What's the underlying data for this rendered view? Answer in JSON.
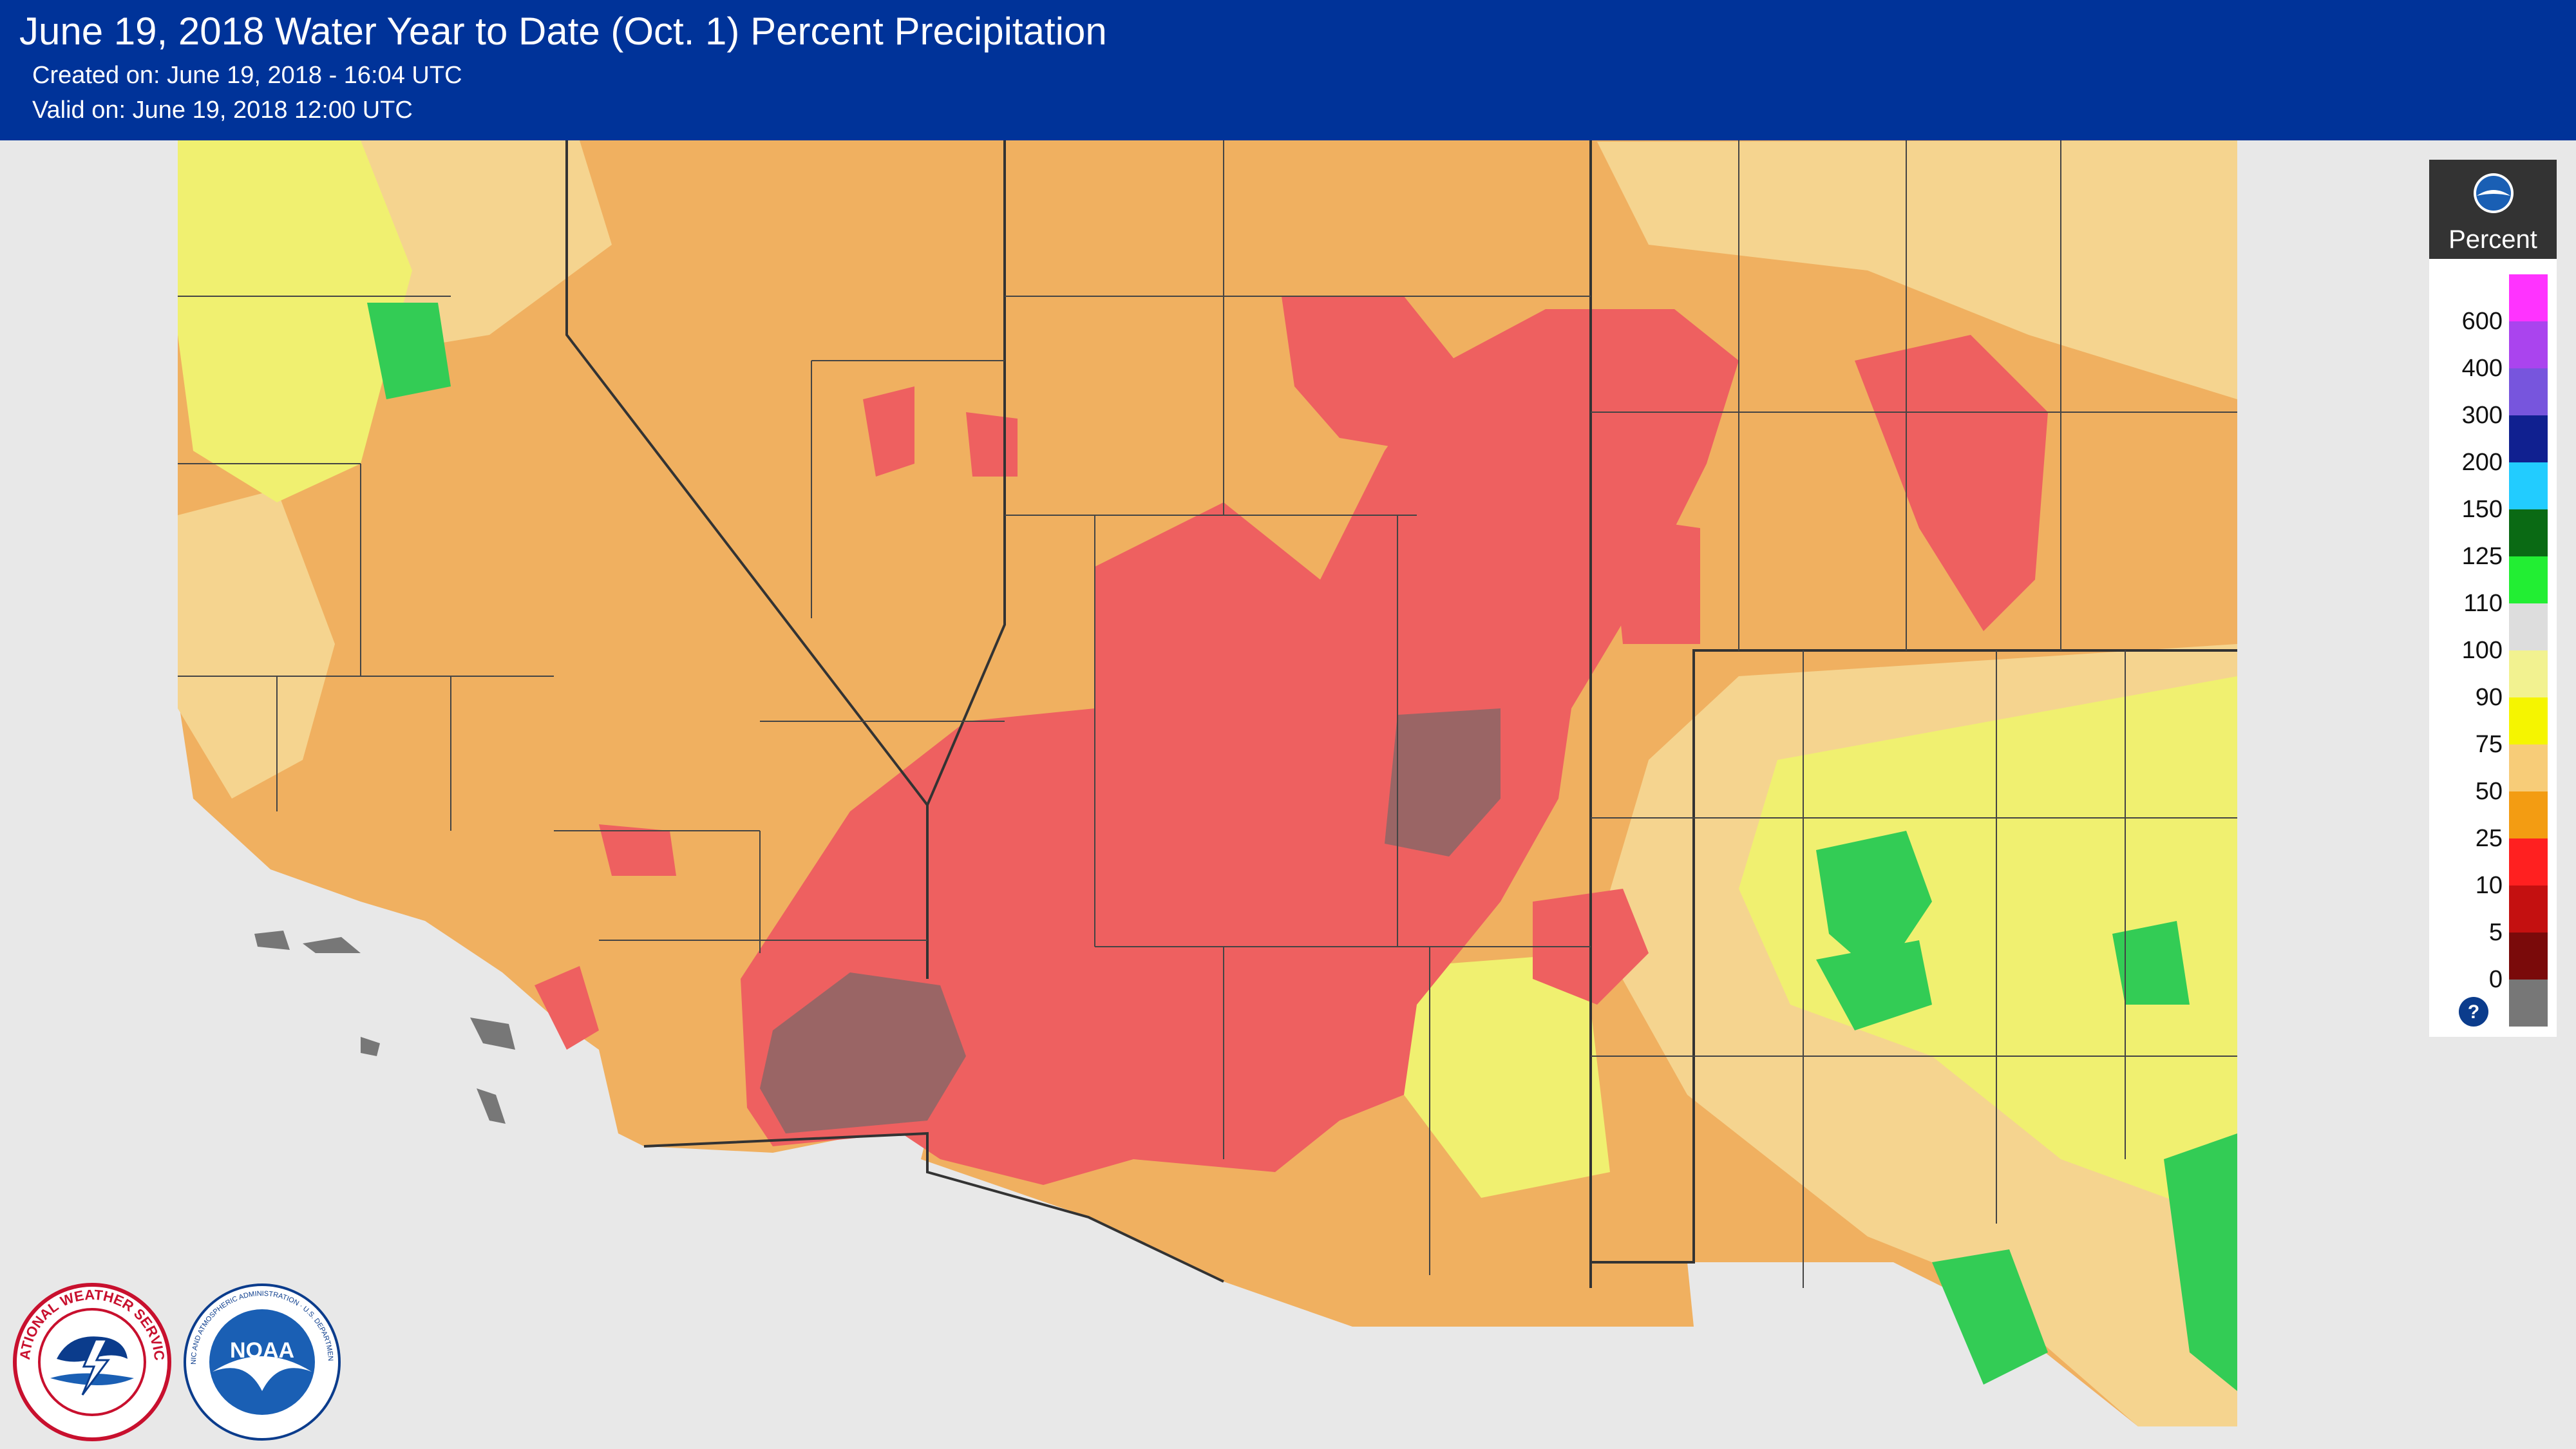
{
  "header": {
    "title": "June 19, 2018 Water Year to Date (Oct. 1) Percent Precipitation",
    "created": "Created on: June 19, 2018 - 16:04 UTC",
    "valid": "Valid on: June 19, 2018 12:00 UTC"
  },
  "legend": {
    "title": "Percent",
    "logo_icon": "noaa-logo-icon",
    "help_icon": "question-icon",
    "labels": [
      "600",
      "400",
      "300",
      "200",
      "150",
      "125",
      "110",
      "100",
      "90",
      "75",
      "50",
      "25",
      "10",
      "5",
      "0"
    ],
    "colors": [
      "#ff33ff",
      "#aa44ee",
      "#7755dd",
      "#102090",
      "#22ccff",
      "#0a6a14",
      "#22ee33",
      "#dddddd",
      "#f2f290",
      "#f5f500",
      "#f7cc78",
      "#f39c12",
      "#ff2020",
      "#c41010",
      "#7a0a0a",
      "#777777"
    ]
  },
  "map": {
    "ocean_color": "#e8e8e8",
    "land_color": "#f0b060",
    "dry_color": "#ee6060",
    "very_dry_color": "#9a6565",
    "near_normal_color": "#f5d48f",
    "wet_color": "#f0f070",
    "green_color": "#33cc55"
  },
  "logos": {
    "nws": "National Weather Service logo",
    "noaa": "NOAA logo",
    "nws_text": "NATIONAL WEATHER SERVICE",
    "noaa_text": "NATIONAL OCEANIC AND ATMOSPHERIC ADMINISTRATION · U.S. DEPARTMENT OF COMMERCE"
  }
}
